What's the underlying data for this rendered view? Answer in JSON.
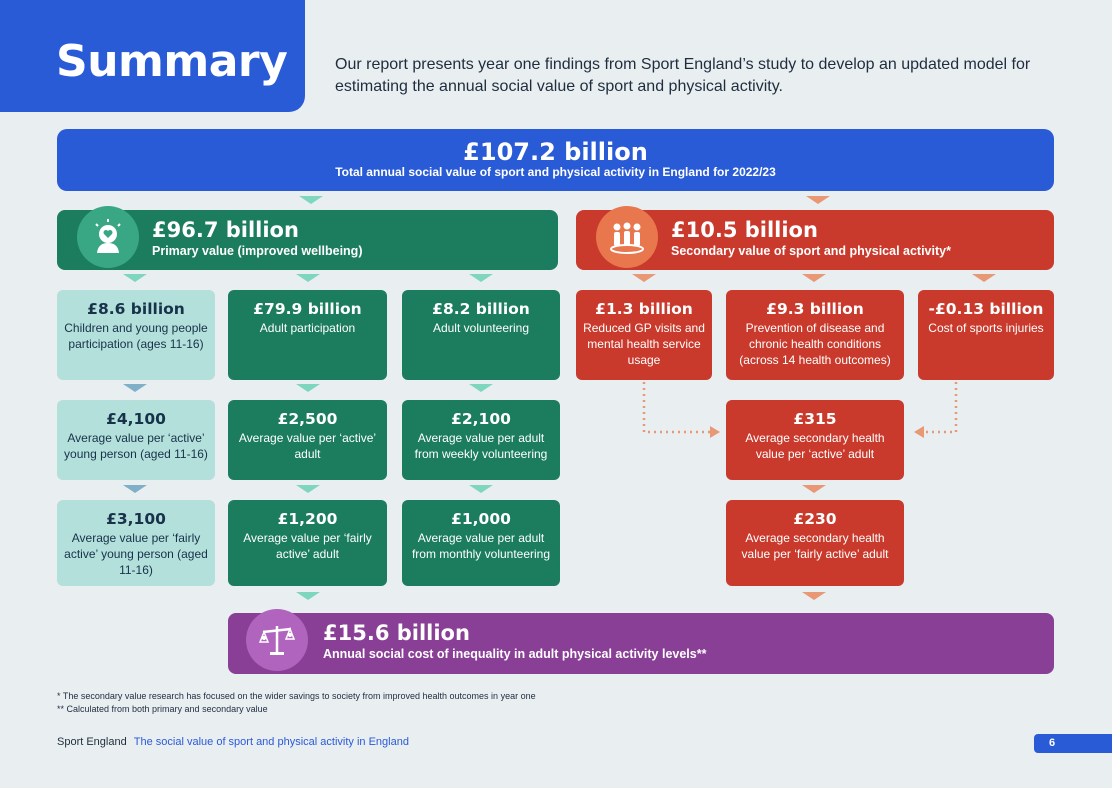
{
  "header": {
    "title": "Summary",
    "intro": "Our report presents year one findings from Sport England’s study to develop an updated model for estimating the annual social value of sport and physical activity."
  },
  "total": {
    "value": "£107.2 billion",
    "label": "Total annual social value of sport and physical activity in England for 2022/23"
  },
  "primary": {
    "value": "£96.7 billion",
    "label": "Primary value (improved wellbeing)",
    "icon": "head-heart-icon",
    "columns": [
      {
        "top": {
          "value": "£8.6 billion",
          "desc": "Children and young people participation (ages 11-16)"
        },
        "mid": {
          "value": "£4,100",
          "desc": "Average value per ‘active’ young person (aged 11-16)"
        },
        "bot": {
          "value": "£3,100",
          "desc": "Average value per ‘fairly active’ young person (aged 11-16)"
        }
      },
      {
        "top": {
          "value": "£79.9 billion",
          "desc": "Adult participation"
        },
        "mid": {
          "value": "£2,500",
          "desc": "Average value per ‘active’ adult"
        },
        "bot": {
          "value": "£1,200",
          "desc": "Average value per ‘fairly active’ adult"
        }
      },
      {
        "top": {
          "value": "£8.2 billion",
          "desc": "Adult volunteering"
        },
        "mid": {
          "value": "£2,100",
          "desc": "Average value per adult from weekly volunteering"
        },
        "bot": {
          "value": "£1,000",
          "desc": "Average value per adult from monthly volunteering"
        }
      }
    ]
  },
  "secondary": {
    "value": "£10.5 billion",
    "label": "Secondary value of sport and physical activity*",
    "icon": "people-group-icon",
    "top": [
      {
        "value": "£1.3 billion",
        "desc": "Reduced GP visits and mental health service usage"
      },
      {
        "value": "£9.3 billion",
        "desc": "Prevention of disease and chronic health conditions (across 14 health outcomes)"
      },
      {
        "value": "-£0.13 billion",
        "desc": "Cost of sports injuries"
      }
    ],
    "mid": {
      "value": "£315",
      "desc": "Average secondary health value per ‘active’ adult"
    },
    "bot": {
      "value": "£230",
      "desc": "Average secondary health value per ‘fairly active’ adult"
    }
  },
  "inequality": {
    "value": "£15.6 billion",
    "label": "Annual social cost of inequality in adult physical activity levels**",
    "icon": "scales-people-icon"
  },
  "footnotes": [
    "* The secondary value research has focused on the wider savings to society from improved health outcomes in year one",
    "** Calculated from both primary and secondary value"
  ],
  "footer": {
    "brand": "Sport England",
    "doc_title": "The social value of sport and physical activity in England",
    "page": "6"
  },
  "colors": {
    "blue": "#2a5bd7",
    "green": "#1b7d5d",
    "light": "#b4e0db",
    "red": "#c93a2c",
    "purple": "#8a3f96"
  }
}
